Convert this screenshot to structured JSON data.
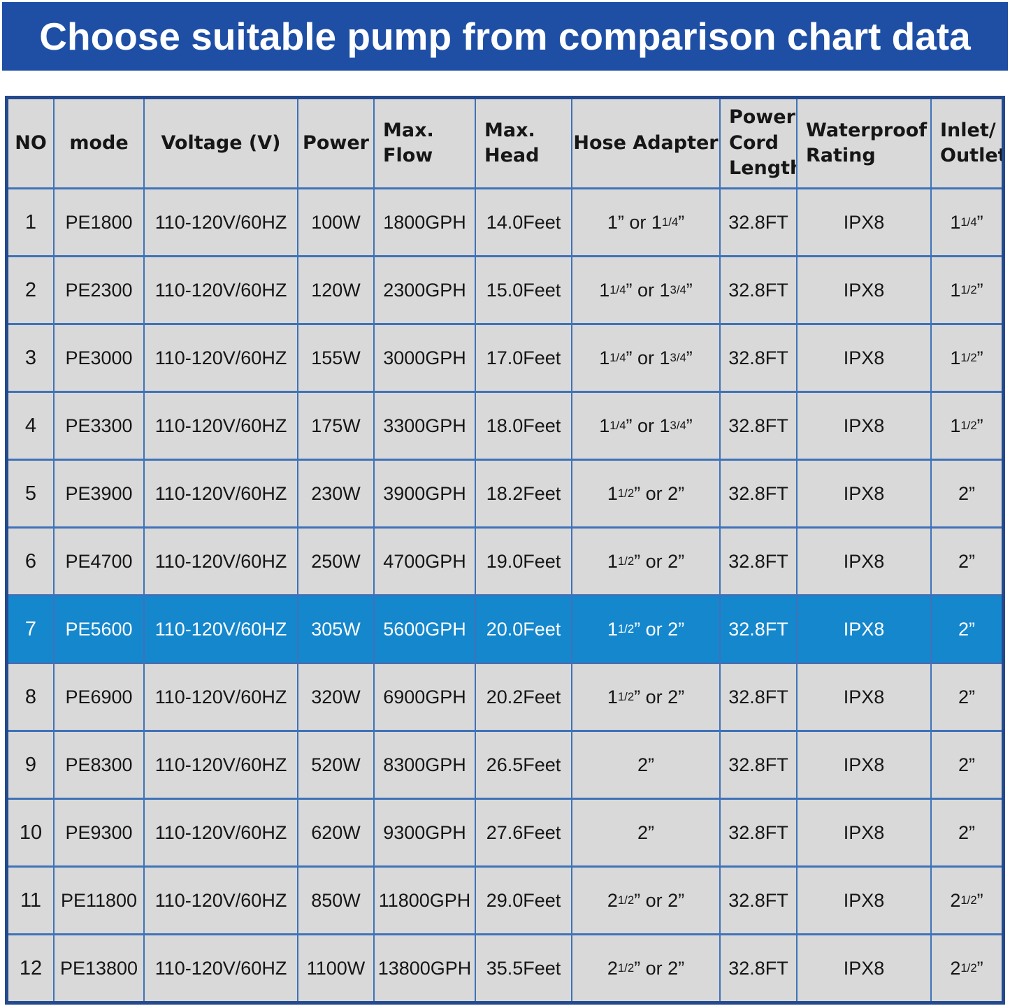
{
  "banner": {
    "title": "Choose suitable pump from comparison chart data"
  },
  "colors": {
    "banner_blue": "#1e4fa5",
    "highlight_blue": "#1487cd",
    "grid_border_blue": "#3f72b8",
    "outer_border_navy": "#24498d",
    "cell_gray": "#d9d9d9"
  },
  "chart_data": {
    "type": "table",
    "title": "Choose suitable pump from comparison chart data",
    "columns": [
      "NO",
      "mode",
      "Voltage (V)",
      "Power",
      "Max. Flow",
      "Max. Head",
      "Hose Adapter",
      "Power Cord Length",
      "Waterproof Rating",
      "Inlet/Outlet"
    ],
    "columns_display": [
      "NO",
      "mode",
      "Voltage (V)",
      "Power",
      "Max.\nFlow",
      "Max.\nHead",
      "Hose Adapter",
      "Power\nCord\nLength",
      "Waterproof\nRating",
      "Inlet/\nOutlet"
    ],
    "rows": [
      [
        "1",
        "PE1800",
        "110-120V/60HZ",
        "100W",
        "1800GPH",
        "14.0Feet",
        "1” or 1 1/4”",
        "32.8FT",
        "IPX8",
        "1 1/4”"
      ],
      [
        "2",
        "PE2300",
        "110-120V/60HZ",
        "120W",
        "2300GPH",
        "15.0Feet",
        "1 1/4” or 1 3/4”",
        "32.8FT",
        "IPX8",
        "1 1/2”"
      ],
      [
        "3",
        "PE3000",
        "110-120V/60HZ",
        "155W",
        "3000GPH",
        "17.0Feet",
        "1 1/4” or 1 3/4”",
        "32.8FT",
        "IPX8",
        "1 1/2”"
      ],
      [
        "4",
        "PE3300",
        "110-120V/60HZ",
        "175W",
        "3300GPH",
        "18.0Feet",
        "1 1/4” or 1 3/4”",
        "32.8FT",
        "IPX8",
        "1 1/2”"
      ],
      [
        "5",
        "PE3900",
        "110-120V/60HZ",
        "230W",
        "3900GPH",
        "18.2Feet",
        "1 1/2” or 2”",
        "32.8FT",
        "IPX8",
        "2”"
      ],
      [
        "6",
        "PE4700",
        "110-120V/60HZ",
        "250W",
        "4700GPH",
        "19.0Feet",
        "1 1/2” or 2”",
        "32.8FT",
        "IPX8",
        "2”"
      ],
      [
        "7",
        "PE5600",
        "110-120V/60HZ",
        "305W",
        "5600GPH",
        "20.0Feet",
        "1 1/2” or 2”",
        "32.8FT",
        "IPX8",
        "2”"
      ],
      [
        "8",
        "PE6900",
        "110-120V/60HZ",
        "320W",
        "6900GPH",
        "20.2Feet",
        "1 1/2” or 2”",
        "32.8FT",
        "IPX8",
        "2”"
      ],
      [
        "9",
        "PE8300",
        "110-120V/60HZ",
        "520W",
        "8300GPH",
        "26.5Feet",
        "2”",
        "32.8FT",
        "IPX8",
        "2”"
      ],
      [
        "10",
        "PE9300",
        "110-120V/60HZ",
        "620W",
        "9300GPH",
        "27.6Feet",
        "2”",
        "32.8FT",
        "IPX8",
        "2”"
      ],
      [
        "11",
        "PE11800",
        "110-120V/60HZ",
        "850W",
        "11800GPH",
        "29.0Feet",
        "2 1/2” or 2”",
        "32.8FT",
        "IPX8",
        "2 1/2”"
      ],
      [
        "12",
        "PE13800",
        "110-120V/60HZ",
        "1100W",
        "13800GPH",
        "35.5Feet",
        "2 1/2” or 2”",
        "32.8FT",
        "IPX8",
        "2 1/2”"
      ]
    ],
    "highlighted_row": {
      "no": 7,
      "model": "PE5600"
    },
    "layout": {
      "grid": true,
      "header_row": true,
      "legend": "none"
    }
  }
}
